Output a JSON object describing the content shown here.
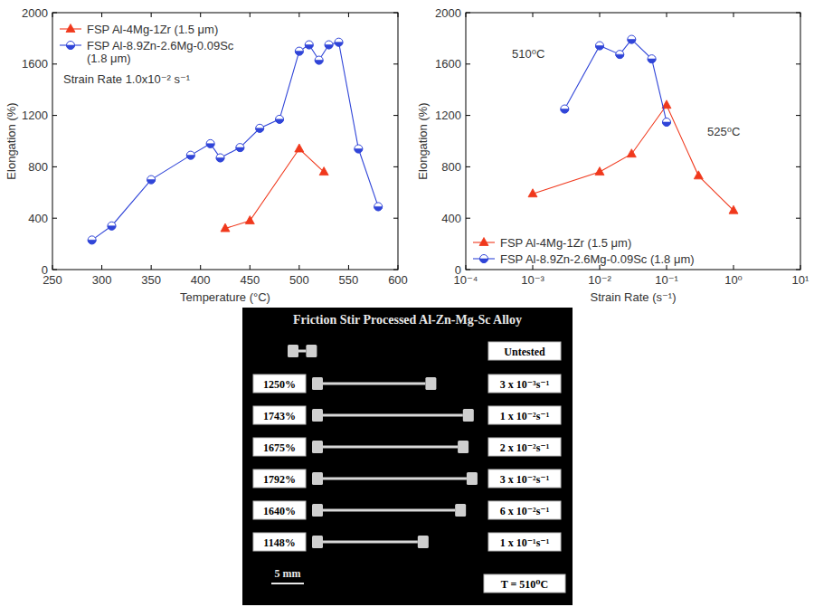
{
  "chart_data": [
    {
      "type": "line",
      "x_label": "Temperature (°C)",
      "y_label": "Elongation (%)",
      "xlim": [
        250,
        600
      ],
      "xticks": [
        250,
        300,
        350,
        400,
        450,
        500,
        550,
        600
      ],
      "ylim": [
        0,
        2000
      ],
      "yticks": [
        0,
        400,
        800,
        1200,
        1600,
        2000
      ],
      "grid": false,
      "legend": "upper left",
      "annotations": [
        "Strain Rate 1.0x10⁻² s⁻¹"
      ],
      "series": [
        {
          "name": "FSP Al-4Mg-1Zr (1.5 μm)",
          "color": "#f0381c",
          "marker": "triangle",
          "x": [
            425,
            450,
            500,
            525
          ],
          "values": [
            320,
            380,
            940,
            760
          ]
        },
        {
          "name": "FSP Al-8.9Zn-2.6Mg-0.09Sc (1.8 μm)",
          "color": "#3045d8",
          "marker": "half-circle",
          "x": [
            290,
            310,
            350,
            390,
            410,
            420,
            440,
            460,
            480,
            500,
            510,
            520,
            530,
            540,
            560,
            580
          ],
          "values": [
            230,
            340,
            700,
            890,
            980,
            870,
            950,
            1100,
            1170,
            1700,
            1750,
            1630,
            1750,
            1770,
            940,
            490
          ]
        }
      ]
    },
    {
      "type": "line",
      "x_label": "Strain Rate (s⁻¹)",
      "y_label": "Elongation (%)",
      "log": "x",
      "xlim": [
        0.0001,
        10
      ],
      "xticks": [
        {
          "value": 0.0001,
          "label": "10⁻⁴"
        },
        {
          "value": 0.001,
          "label": "10⁻³"
        },
        {
          "value": 0.01,
          "label": "10⁻²"
        },
        {
          "value": 0.1,
          "label": "10⁻¹"
        },
        {
          "value": 1,
          "label": "10⁰"
        },
        {
          "value": 10,
          "label": "10¹"
        }
      ],
      "ylim": [
        0,
        2000
      ],
      "yticks": [
        0,
        400,
        800,
        1200,
        1600,
        2000
      ],
      "grid": false,
      "legend": "lower left",
      "annotations": [
        "510⁰C",
        "525⁰C"
      ],
      "series": [
        {
          "name": "FSP Al-4Mg-1Zr (1.5 μm)",
          "color": "#f0381c",
          "marker": "triangle",
          "x": [
            0.001,
            0.01,
            0.03,
            0.1,
            0.3,
            1
          ],
          "values": [
            590,
            760,
            900,
            1280,
            730,
            460
          ]
        },
        {
          "name": "FSP Al-8.9Zn-2.6Mg-0.09Sc (1.8 μm)",
          "color": "#3045d8",
          "marker": "half-circle",
          "x": [
            0.003,
            0.01,
            0.02,
            0.03,
            0.06,
            0.1
          ],
          "values": [
            1250,
            1743,
            1675,
            1792,
            1640,
            1148
          ]
        }
      ]
    }
  ],
  "specimen_panel": {
    "title": "Friction Stir Processed Al-Zn-Mg-Sc Alloy",
    "untested_label": "Untested",
    "specimens": [
      {
        "elongation": 1250,
        "elongation_label": "1250%",
        "strain_rate": "3 x 10⁻³s⁻¹"
      },
      {
        "elongation": 1743,
        "elongation_label": "1743%",
        "strain_rate": "1 x 10⁻²s⁻¹"
      },
      {
        "elongation": 1675,
        "elongation_label": "1675%",
        "strain_rate": "2 x 10⁻²s⁻¹"
      },
      {
        "elongation": 1792,
        "elongation_label": "1792%",
        "strain_rate": "3 x 10⁻²s⁻¹"
      },
      {
        "elongation": 1640,
        "elongation_label": "1640%",
        "strain_rate": "6 x 10⁻²s⁻¹"
      },
      {
        "elongation": 1148,
        "elongation_label": "1148%",
        "strain_rate": "1 x 10⁻¹s⁻¹"
      }
    ],
    "scale_bar": "5 mm",
    "temperature": "T = 510⁰C"
  }
}
